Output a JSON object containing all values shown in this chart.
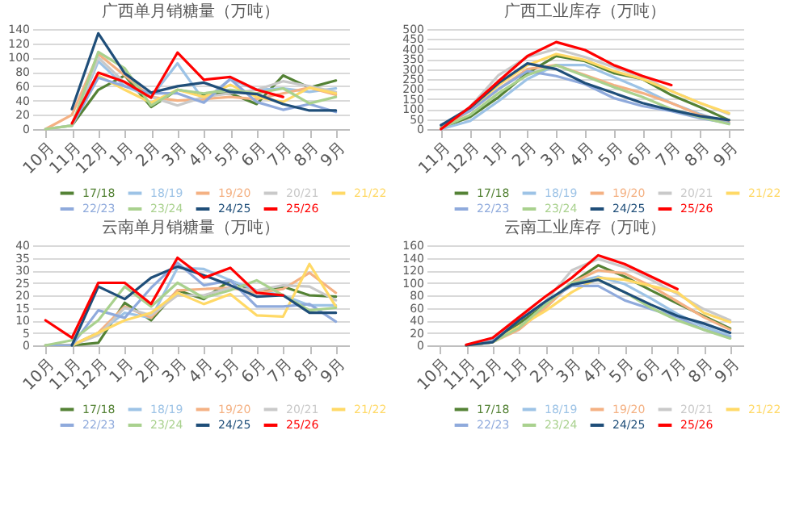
{
  "chart_data": [
    {
      "type": "line",
      "title": "广西单月销糖量（万吨）",
      "categories": [
        "10月",
        "11月",
        "12月",
        "1月",
        "2月",
        "3月",
        "4月",
        "5月",
        "6月",
        "7月",
        "8月",
        "9月"
      ],
      "ylim": [
        0,
        140
      ],
      "yticks": [
        0,
        20,
        40,
        60,
        80,
        100,
        120,
        140
      ],
      "grid": "y",
      "legend": "bottom",
      "marker": "none",
      "line_style": "solid",
      "series": [
        {
          "name": "17/18",
          "color": "#548235",
          "values": [
            null,
            5,
            55,
            75,
            31,
            55,
            48,
            50,
            35,
            75,
            58,
            68
          ]
        },
        {
          "name": "18/19",
          "color": "#9dc3e6",
          "values": [
            0,
            5,
            95,
            60,
            45,
            92,
            40,
            70,
            55,
            57,
            52,
            57
          ]
        },
        {
          "name": "19/20",
          "color": "#f4b183",
          "values": [
            0,
            20,
            105,
            75,
            45,
            40,
            42,
            45,
            42,
            50,
            58,
            48
          ]
        },
        {
          "name": "20/21",
          "color": "#c9c9c9",
          "values": [
            0,
            5,
            100,
            65,
            45,
            33,
            45,
            50,
            55,
            67,
            60,
            52
          ]
        },
        {
          "name": "21/22",
          "color": "#ffd966",
          "values": [
            null,
            5,
            75,
            55,
            37,
            55,
            45,
            62,
            45,
            38,
            58,
            50
          ]
        },
        {
          "name": "22/23",
          "color": "#8faadc",
          "values": [
            null,
            5,
            72,
            60,
            50,
            50,
            37,
            70,
            38,
            27,
            35,
            24
          ]
        },
        {
          "name": "23/24",
          "color": "#a9d18e",
          "values": [
            0,
            5,
            108,
            85,
            33,
            55,
            50,
            55,
            50,
            57,
            36,
            45
          ]
        },
        {
          "name": "24/25",
          "color": "#1f4e79",
          "values": [
            null,
            28,
            134,
            78,
            51,
            60,
            65,
            52,
            49,
            35,
            26,
            26
          ]
        },
        {
          "name": "25/26",
          "color": "#ff0000",
          "values": [
            null,
            8,
            79,
            66,
            44,
            107,
            69,
            73,
            55,
            45,
            null,
            null
          ]
        }
      ]
    },
    {
      "type": "line",
      "title": "广西工业库存（万吨）",
      "categories": [
        "11月",
        "12月",
        "1月",
        "2月",
        "3月",
        "4月",
        "5月",
        "6月",
        "7月",
        "8月",
        "9月"
      ],
      "ylim": [
        0,
        500
      ],
      "yticks": [
        0,
        50,
        100,
        150,
        200,
        250,
        300,
        350,
        400,
        450,
        500
      ],
      "grid": "y",
      "legend": "bottom",
      "marker": "none",
      "line_style": "solid",
      "series": [
        {
          "name": "17/18",
          "color": "#548235",
          "values": [
            5,
            60,
            160,
            280,
            365,
            340,
            280,
            250,
            170,
            110,
            45
          ]
        },
        {
          "name": "18/19",
          "color": "#9dc3e6",
          "values": [
            0,
            40,
            140,
            250,
            320,
            320,
            260,
            200,
            130,
            75,
            30
          ]
        },
        {
          "name": "19/20",
          "color": "#f4b183",
          "values": [
            5,
            90,
            200,
            300,
            320,
            270,
            220,
            180,
            130,
            70,
            35
          ]
        },
        {
          "name": "20/21",
          "color": "#c9c9c9",
          "values": [
            10,
            110,
            270,
            360,
            400,
            360,
            310,
            260,
            190,
            130,
            75
          ]
        },
        {
          "name": "21/22",
          "color": "#ffd966",
          "values": [
            5,
            100,
            220,
            320,
            375,
            345,
            290,
            250,
            190,
            130,
            80
          ]
        },
        {
          "name": "22/23",
          "color": "#8faadc",
          "values": [
            20,
            90,
            200,
            290,
            265,
            225,
            155,
            115,
            90,
            55,
            30
          ]
        },
        {
          "name": "23/24",
          "color": "#a9d18e",
          "values": [
            5,
            70,
            180,
            270,
            320,
            265,
            210,
            160,
            100,
            60,
            25
          ]
        },
        {
          "name": "24/25",
          "color": "#1f4e79",
          "values": [
            20,
            105,
            230,
            328,
            300,
            230,
            180,
            130,
            95,
            65,
            45
          ]
        },
        {
          "name": "25/26",
          "color": "#ff0000",
          "values": [
            0,
            110,
            240,
            365,
            435,
            395,
            320,
            265,
            220,
            null,
            null
          ]
        }
      ]
    },
    {
      "type": "line",
      "title": "云南单月销糖量（万吨）",
      "categories": [
        "10月",
        "11月",
        "12月",
        "1月",
        "2月",
        "3月",
        "4月",
        "5月",
        "6月",
        "7月",
        "8月",
        "9月"
      ],
      "ylim": [
        0,
        40
      ],
      "yticks": [
        0,
        5,
        10,
        15,
        20,
        25,
        30,
        35,
        40
      ],
      "grid": "y",
      "legend": "bottom",
      "marker": "none",
      "line_style": "solid",
      "series": [
        {
          "name": "17/18",
          "color": "#548235",
          "values": [
            0,
            0,
            1,
            17,
            10,
            22,
            18.5,
            26,
            21,
            23.5,
            20,
            19.5
          ]
        },
        {
          "name": "18/19",
          "color": "#9dc3e6",
          "values": [
            0,
            0,
            5,
            13,
            11,
            31,
            30.5,
            26,
            22,
            20,
            16,
            16
          ]
        },
        {
          "name": "19/20",
          "color": "#f4b183",
          "values": [
            0,
            0,
            5,
            15.5,
            11,
            22,
            22.5,
            23,
            21,
            22.5,
            29,
            21
          ]
        },
        {
          "name": "20/21",
          "color": "#c9c9c9",
          "values": [
            0,
            0,
            4,
            15,
            12,
            20,
            20,
            23,
            22,
            24,
            23.5,
            18
          ]
        },
        {
          "name": "21/22",
          "color": "#ffd966",
          "values": [
            0,
            0,
            5,
            10,
            13,
            21,
            16.5,
            20.5,
            12,
            11.5,
            32.5,
            15.5
          ]
        },
        {
          "name": "22/23",
          "color": "#8faadc",
          "values": [
            0,
            0,
            14,
            11,
            23,
            33,
            24,
            26,
            15.5,
            15.5,
            16.5,
            9.5
          ]
        },
        {
          "name": "23/24",
          "color": "#a9d18e",
          "values": [
            0,
            2,
            10,
            23.5,
            15.5,
            25,
            19,
            22,
            26,
            20,
            14,
            15
          ]
        },
        {
          "name": "24/25",
          "color": "#1f4e79",
          "values": [
            null,
            0,
            23.5,
            18.5,
            27,
            31.5,
            28,
            24,
            19.5,
            20,
            13,
            13
          ]
        },
        {
          "name": "25/26",
          "color": "#ff0000",
          "values": [
            10,
            3,
            25,
            25,
            16.5,
            35,
            27,
            31,
            21,
            20,
            null,
            null
          ]
        }
      ]
    },
    {
      "type": "line",
      "title": "云南工业库存（万吨）",
      "categories": [
        "10月",
        "11月",
        "12月",
        "1月",
        "2月",
        "3月",
        "4月",
        "5月",
        "6月",
        "7月",
        "8月",
        "9月"
      ],
      "ylim": [
        0,
        160
      ],
      "yticks": [
        0,
        20,
        40,
        60,
        80,
        100,
        120,
        140,
        160
      ],
      "grid": "y",
      "legend": "bottom",
      "marker": "none",
      "line_style": "solid",
      "series": [
        {
          "name": "17/18",
          "color": "#548235",
          "values": [
            null,
            0,
            8,
            35,
            65,
            100,
            128,
            110,
            88,
            67,
            47,
            27
          ]
        },
        {
          "name": "18/19",
          "color": "#9dc3e6",
          "values": [
            null,
            0,
            5,
            30,
            60,
            100,
            110,
            98,
            75,
            50,
            30,
            15
          ]
        },
        {
          "name": "19/20",
          "color": "#f4b183",
          "values": [
            null,
            0,
            5,
            25,
            60,
            100,
            120,
            115,
            95,
            70,
            45,
            25
          ]
        },
        {
          "name": "20/21",
          "color": "#c9c9c9",
          "values": [
            null,
            0,
            10,
            40,
            70,
            120,
            138,
            125,
            105,
            82,
            58,
            40
          ]
        },
        {
          "name": "21/22",
          "color": "#ffd966",
          "values": [
            null,
            0,
            5,
            30,
            55,
            85,
            108,
            105,
            95,
            85,
            52,
            37
          ]
        },
        {
          "name": "22/23",
          "color": "#8faadc",
          "values": [
            null,
            0,
            7,
            40,
            70,
            95,
            95,
            72,
            58,
            45,
            25,
            13
          ]
        },
        {
          "name": "23/24",
          "color": "#a9d18e",
          "values": [
            null,
            0,
            5,
            28,
            65,
            100,
            105,
            85,
            60,
            40,
            25,
            11
          ]
        },
        {
          "name": "24/25",
          "color": "#1f4e79",
          "values": [
            null,
            0,
            5,
            40,
            70,
            97,
            105,
            85,
            65,
            47,
            35,
            20
          ]
        },
        {
          "name": "25/26",
          "color": "#ff0000",
          "values": [
            null,
            1,
            12,
            45,
            78,
            108,
            144,
            130,
            110,
            90,
            null,
            null
          ]
        }
      ]
    }
  ]
}
